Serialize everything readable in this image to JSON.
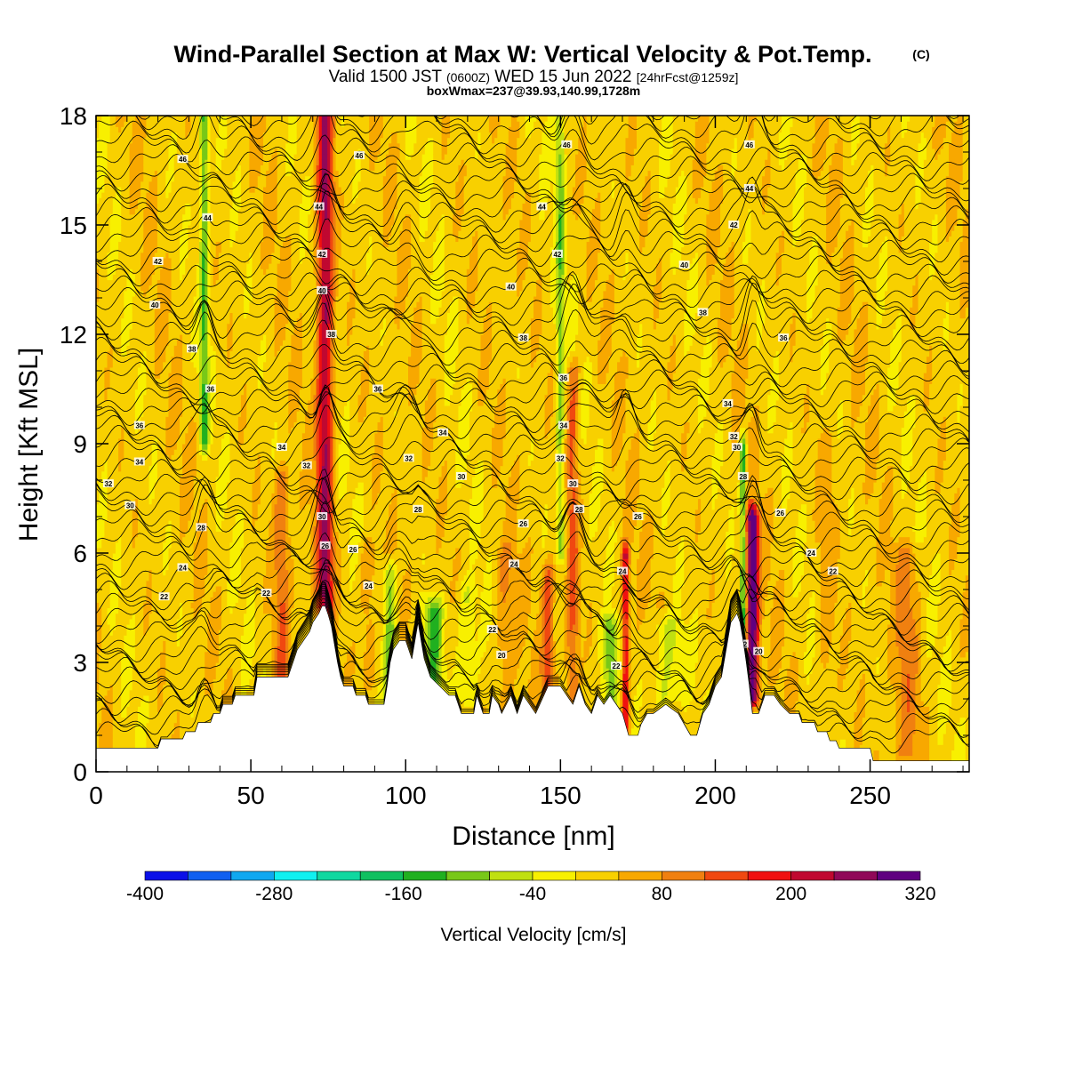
{
  "header": {
    "title_main": "Wind-Parallel Section at Max W: Vertical Velocity & Pot.Temp.",
    "title_mark": "(C)",
    "valid_prefix": "Valid 1500 JST",
    "valid_utc": "(0600Z)",
    "valid_date": "WED 15 Jun 2022",
    "valid_fcst": "[24hrFcst@1259z]",
    "box_info": "boxWmax=237@39.93,140.99,1728m"
  },
  "colorbar": {
    "title": "Vertical Velocity [cm/s]",
    "tick_labels": [
      "-400",
      "-280",
      "-160",
      "-40",
      "80",
      "200",
      "320"
    ],
    "tick_values": [
      -400,
      -280,
      -160,
      -40,
      80,
      200,
      320
    ],
    "levels": [
      -400,
      -360,
      -320,
      -280,
      -240,
      -200,
      -160,
      -120,
      -80,
      -40,
      0,
      40,
      80,
      120,
      160,
      200,
      240,
      280,
      320
    ],
    "colors": [
      "#0a10e8",
      "#1060f0",
      "#10a8f0",
      "#10f0f0",
      "#10d8a0",
      "#10c060",
      "#20b020",
      "#78c818",
      "#c0e010",
      "#f8f000",
      "#f8d000",
      "#f8a800",
      "#f08010",
      "#f04810",
      "#f01010",
      "#c00830",
      "#900858",
      "#600080"
    ]
  },
  "chart_data": {
    "type": "heatmap",
    "title": "Wind-Parallel Section at Max W: Vertical Velocity & Pot.Temp.",
    "xlabel": "Distance [nm]",
    "ylabel": "Height [Kft MSL]",
    "xlim": [
      0,
      282
    ],
    "ylim": [
      0,
      18
    ],
    "x_ticks": [
      0,
      50,
      100,
      150,
      200,
      250
    ],
    "x_tick_labels": [
      "0",
      "50",
      "100",
      "150",
      "200",
      "250"
    ],
    "y_ticks": [
      0,
      3,
      6,
      9,
      12,
      15,
      18
    ],
    "y_tick_labels": [
      "0",
      "3",
      "6",
      "9",
      "12",
      "15",
      "18"
    ],
    "colorbar_label": "Vertical Velocity [cm/s]",
    "contour_field": "Potential temperature",
    "terrain": [
      [
        0,
        0.65
      ],
      [
        20,
        0.65
      ],
      [
        21,
        0.9
      ],
      [
        28,
        0.9
      ],
      [
        29,
        1.1
      ],
      [
        32,
        1.1
      ],
      [
        33,
        1.35
      ],
      [
        37,
        1.35
      ],
      [
        38,
        1.6
      ],
      [
        40,
        1.6
      ],
      [
        41,
        1.85
      ],
      [
        44,
        1.85
      ],
      [
        45,
        2.1
      ],
      [
        51,
        2.1
      ],
      [
        52,
        2.6
      ],
      [
        62,
        2.6
      ],
      [
        63,
        2.85
      ],
      [
        64,
        3.1
      ],
      [
        65,
        3.35
      ],
      [
        67,
        3.6
      ],
      [
        69,
        3.85
      ],
      [
        70,
        4.1
      ],
      [
        72,
        4.35
      ],
      [
        73,
        4.55
      ],
      [
        74,
        4.55
      ],
      [
        75,
        4.3
      ],
      [
        76,
        4.0
      ],
      [
        77,
        3.5
      ],
      [
        78,
        3.0
      ],
      [
        79,
        2.6
      ],
      [
        80,
        2.35
      ],
      [
        83,
        2.35
      ],
      [
        84,
        2.1
      ],
      [
        87,
        2.1
      ],
      [
        88,
        1.85
      ],
      [
        93,
        1.85
      ],
      [
        94,
        2.35
      ],
      [
        95,
        3.0
      ],
      [
        96,
        3.35
      ],
      [
        98,
        3.6
      ],
      [
        100,
        3.6
      ],
      [
        101,
        3.35
      ],
      [
        102,
        3.1
      ],
      [
        103,
        3.6
      ],
      [
        104,
        4.1
      ],
      [
        105,
        3.6
      ],
      [
        106,
        3.1
      ],
      [
        108,
        2.6
      ],
      [
        111,
        2.35
      ],
      [
        114,
        2.1
      ],
      [
        116,
        2.1
      ],
      [
        117,
        1.85
      ],
      [
        118,
        1.6
      ],
      [
        122,
        1.6
      ],
      [
        123,
        2.1
      ],
      [
        124,
        1.85
      ],
      [
        125,
        1.6
      ],
      [
        127,
        1.6
      ],
      [
        128,
        2.1
      ],
      [
        130,
        1.85
      ],
      [
        131,
        1.6
      ],
      [
        134,
        2.1
      ],
      [
        136,
        1.6
      ],
      [
        138,
        2.1
      ],
      [
        140,
        1.85
      ],
      [
        142,
        1.6
      ],
      [
        146,
        2.35
      ],
      [
        150,
        2.35
      ],
      [
        152,
        2.1
      ],
      [
        154,
        1.85
      ],
      [
        156,
        2.35
      ],
      [
        158,
        1.85
      ],
      [
        160,
        1.6
      ],
      [
        162,
        2.1
      ],
      [
        164,
        1.85
      ],
      [
        166,
        2.1
      ],
      [
        168,
        1.85
      ],
      [
        170,
        1.6
      ],
      [
        172,
        1.0
      ],
      [
        175,
        1.0
      ],
      [
        176,
        1.3
      ],
      [
        178,
        1.6
      ],
      [
        180,
        1.6
      ],
      [
        184,
        1.85
      ],
      [
        188,
        1.6
      ],
      [
        190,
        1.3
      ],
      [
        192,
        1.0
      ],
      [
        194,
        1.0
      ],
      [
        196,
        1.6
      ],
      [
        198,
        1.85
      ],
      [
        200,
        2.35
      ],
      [
        202,
        2.6
      ],
      [
        203,
        3.1
      ],
      [
        204,
        3.6
      ],
      [
        205,
        4.1
      ],
      [
        207,
        4.35
      ],
      [
        208,
        4.1
      ],
      [
        209,
        3.6
      ],
      [
        210,
        3.0
      ],
      [
        211,
        2.35
      ],
      [
        212,
        1.6
      ],
      [
        214,
        1.6
      ],
      [
        216,
        2.1
      ],
      [
        219,
        2.1
      ],
      [
        221,
        1.85
      ],
      [
        224,
        1.6
      ],
      [
        227,
        1.6
      ],
      [
        228,
        1.35
      ],
      [
        232,
        1.35
      ],
      [
        233,
        1.1
      ],
      [
        236,
        1.1
      ],
      [
        237,
        0.85
      ],
      [
        239,
        0.85
      ],
      [
        240,
        0.65
      ],
      [
        250,
        0.65
      ],
      [
        251,
        0.3
      ],
      [
        282,
        0.3
      ]
    ],
    "velocity_features": [
      {
        "x": 74,
        "y0": 4.5,
        "y1": 18.0,
        "w": 2.6,
        "amp": 230
      },
      {
        "x": 212,
        "y0": 2.0,
        "y1": 7.0,
        "w": 2.0,
        "amp": 300
      },
      {
        "x": 209,
        "y0": 3.5,
        "y1": 9.0,
        "w": 1.0,
        "amp": -170
      },
      {
        "x": 171,
        "y0": 1.2,
        "y1": 6.0,
        "w": 1.2,
        "amp": 190
      },
      {
        "x": 154,
        "y0": 2.0,
        "y1": 11.0,
        "w": 2.0,
        "amp": 110
      },
      {
        "x": 146,
        "y0": 2.2,
        "y1": 5.5,
        "w": 2.0,
        "amp": 110
      },
      {
        "x": 150,
        "y0": 6.0,
        "y1": 18.0,
        "w": 1.4,
        "amp": -110
      },
      {
        "x": 35,
        "y0": 9.0,
        "y1": 18.0,
        "w": 1.4,
        "amp": -140
      },
      {
        "x": 109,
        "y0": 2.0,
        "y1": 4.5,
        "w": 3.0,
        "amp": -150
      },
      {
        "x": 95,
        "y0": 2.0,
        "y1": 5.5,
        "w": 2.0,
        "amp": -120
      },
      {
        "x": 166,
        "y0": 2.0,
        "y1": 4.0,
        "w": 2.5,
        "amp": -130
      },
      {
        "x": 184,
        "y0": 2.0,
        "y1": 4.0,
        "w": 5.0,
        "amp": -80
      },
      {
        "x": 60,
        "y0": 2.6,
        "y1": 8.0,
        "w": 2.5,
        "amp": 90
      },
      {
        "x": 132,
        "y0": 1.6,
        "y1": 6.0,
        "w": 3.0,
        "amp": 60
      },
      {
        "x": 88,
        "y0": 2.5,
        "y1": 6.0,
        "w": 3.0,
        "amp": 60
      },
      {
        "x": 120,
        "y0": 2.0,
        "y1": 5.0,
        "w": 3.0,
        "amp": -60
      },
      {
        "x": 236,
        "y0": 1.0,
        "y1": 9.0,
        "w": 3.0,
        "amp": 40
      },
      {
        "x": 262,
        "y0": 0.5,
        "y1": 6.0,
        "w": 4.0,
        "amp": 70
      }
    ],
    "theta_labels": [
      {
        "x": 28,
        "y": 16.8,
        "text": "46"
      },
      {
        "x": 85,
        "y": 16.9,
        "text": "46"
      },
      {
        "x": 152,
        "y": 17.2,
        "text": "46"
      },
      {
        "x": 211,
        "y": 17.2,
        "text": "46"
      },
      {
        "x": 36,
        "y": 15.2,
        "text": "44"
      },
      {
        "x": 72,
        "y": 15.5,
        "text": "44"
      },
      {
        "x": 144,
        "y": 15.5,
        "text": "44"
      },
      {
        "x": 211,
        "y": 16.0,
        "text": "44"
      },
      {
        "x": 20,
        "y": 14.0,
        "text": "42"
      },
      {
        "x": 73,
        "y": 14.2,
        "text": "42"
      },
      {
        "x": 149,
        "y": 14.2,
        "text": "42"
      },
      {
        "x": 206,
        "y": 15.0,
        "text": "42"
      },
      {
        "x": 19,
        "y": 12.8,
        "text": "40"
      },
      {
        "x": 73,
        "y": 13.2,
        "text": "40"
      },
      {
        "x": 134,
        "y": 13.3,
        "text": "40"
      },
      {
        "x": 190,
        "y": 13.9,
        "text": "40"
      },
      {
        "x": 31,
        "y": 11.6,
        "text": "38"
      },
      {
        "x": 76,
        "y": 12.0,
        "text": "38"
      },
      {
        "x": 138,
        "y": 11.9,
        "text": "38"
      },
      {
        "x": 196,
        "y": 12.6,
        "text": "38"
      },
      {
        "x": 37,
        "y": 10.5,
        "text": "36"
      },
      {
        "x": 91,
        "y": 10.5,
        "text": "36"
      },
      {
        "x": 151,
        "y": 10.8,
        "text": "36"
      },
      {
        "x": 222,
        "y": 11.9,
        "text": "36"
      },
      {
        "x": 14,
        "y": 9.5,
        "text": "36"
      },
      {
        "x": 60,
        "y": 8.9,
        "text": "34"
      },
      {
        "x": 112,
        "y": 9.3,
        "text": "34"
      },
      {
        "x": 151,
        "y": 9.5,
        "text": "34"
      },
      {
        "x": 204,
        "y": 10.1,
        "text": "34"
      },
      {
        "x": 14,
        "y": 8.5,
        "text": "34"
      },
      {
        "x": 68,
        "y": 8.4,
        "text": "32"
      },
      {
        "x": 101,
        "y": 8.6,
        "text": "32"
      },
      {
        "x": 150,
        "y": 8.6,
        "text": "32"
      },
      {
        "x": 206,
        "y": 9.2,
        "text": "32"
      },
      {
        "x": 4,
        "y": 7.9,
        "text": "32"
      },
      {
        "x": 118,
        "y": 8.1,
        "text": "30"
      },
      {
        "x": 154,
        "y": 7.9,
        "text": "30"
      },
      {
        "x": 207,
        "y": 8.9,
        "text": "30"
      },
      {
        "x": 11,
        "y": 7.3,
        "text": "30"
      },
      {
        "x": 73,
        "y": 7.0,
        "text": "30"
      },
      {
        "x": 104,
        "y": 7.2,
        "text": "28"
      },
      {
        "x": 156,
        "y": 7.2,
        "text": "28"
      },
      {
        "x": 209,
        "y": 8.1,
        "text": "28"
      },
      {
        "x": 34,
        "y": 6.7,
        "text": "28"
      },
      {
        "x": 138,
        "y": 6.8,
        "text": "26"
      },
      {
        "x": 175,
        "y": 7.0,
        "text": "26"
      },
      {
        "x": 221,
        "y": 7.1,
        "text": "26"
      },
      {
        "x": 74,
        "y": 6.2,
        "text": "26"
      },
      {
        "x": 83,
        "y": 6.1,
        "text": "26"
      },
      {
        "x": 28,
        "y": 5.6,
        "text": "24"
      },
      {
        "x": 135,
        "y": 5.7,
        "text": "24"
      },
      {
        "x": 170,
        "y": 5.5,
        "text": "24"
      },
      {
        "x": 231,
        "y": 6.0,
        "text": "24"
      },
      {
        "x": 88,
        "y": 5.1,
        "text": "24"
      },
      {
        "x": 22,
        "y": 4.8,
        "text": "22"
      },
      {
        "x": 55,
        "y": 4.9,
        "text": "22"
      },
      {
        "x": 238,
        "y": 5.5,
        "text": "22"
      },
      {
        "x": 128,
        "y": 3.9,
        "text": "22"
      },
      {
        "x": 168,
        "y": 2.9,
        "text": "22"
      },
      {
        "x": 209,
        "y": 3.5,
        "text": "22"
      },
      {
        "x": 131,
        "y": 3.2,
        "text": "20"
      },
      {
        "x": 214,
        "y": 3.3,
        "text": "20"
      }
    ]
  }
}
